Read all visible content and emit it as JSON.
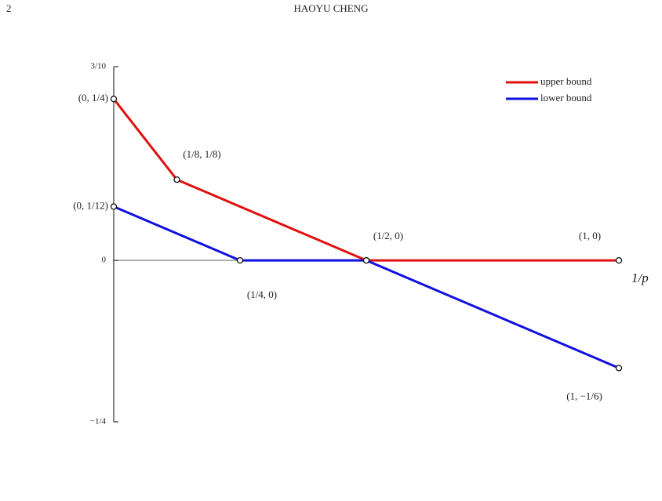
{
  "header": {
    "page": "2",
    "author": "HAOYU CHENG"
  },
  "chart_data": {
    "type": "line",
    "xlabel": "1/p",
    "xlim": [
      0,
      1
    ],
    "ylim": [
      -0.25,
      0.3
    ],
    "yticks": [
      {
        "value": 0.3,
        "label": "3/10"
      },
      0,
      {
        "value": -0.25,
        "label": "−1/4"
      }
    ],
    "legend": "upper right",
    "series": [
      {
        "name": "upper bound",
        "color": "#e01010",
        "x": [
          0,
          0.125,
          0.5,
          1
        ],
        "values": [
          0.25,
          0.125,
          0,
          0
        ],
        "point_labels": [
          "(0, 1/4)",
          "(1/8, 1/8)",
          "(1/2, 0)",
          "(1, 0)"
        ]
      },
      {
        "name": "lower bound",
        "color": "#1010e0",
        "x": [
          0,
          0.25,
          0.5,
          1
        ],
        "values": [
          0.0833,
          0,
          0,
          -0.1667
        ],
        "point_labels": [
          "(0, 1/12)",
          "(1/4, 0)",
          null,
          "(1, −1/6)"
        ]
      }
    ]
  }
}
